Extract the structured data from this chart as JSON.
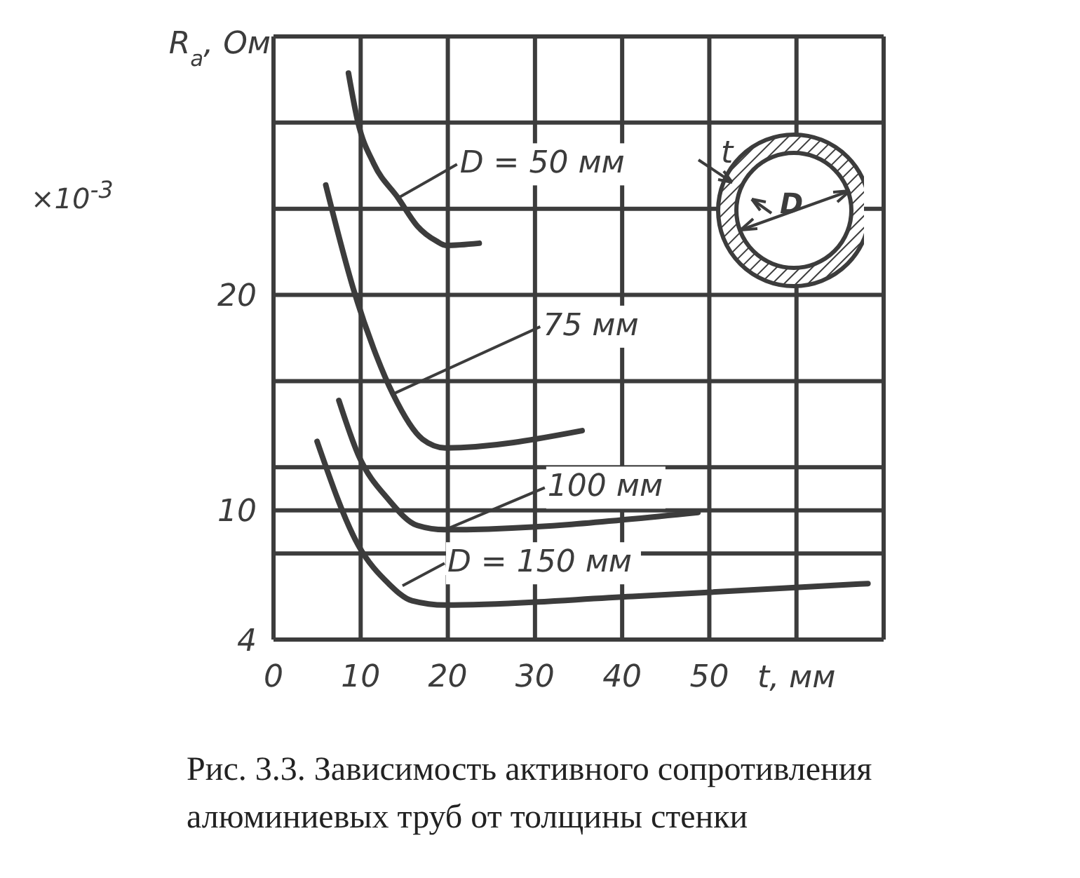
{
  "chart_data": {
    "type": "line",
    "xlabel": "t, мм",
    "ylabel": "R$_{a}$, Ом",
    "xlim": [
      0,
      70
    ],
    "xticks": [
      0,
      10,
      20,
      30,
      40,
      50,
      {
        "value": 60,
        "label": null
      },
      {
        "value": 70,
        "label": null
      }
    ],
    "ylim": [
      4,
      32
    ],
    "yticks": [
      4,
      {
        "value": 8,
        "label": null
      },
      10,
      {
        "value": 12,
        "label": null
      },
      {
        "value": 16,
        "label": null
      },
      20,
      {
        "value": 24,
        "label": null
      },
      {
        "value": 28,
        "label": null
      },
      {
        "value": 32,
        "label": null
      }
    ],
    "grid": true,
    "line_style": "solid",
    "series": [
      {
        "color": "#3c3c3c",
        "x": [
          8.6,
          9.7,
          11.5,
          14.3,
          16.5,
          18.7,
          19.8,
          23.6
        ],
        "values": [
          30.3,
          28,
          26.1,
          24.5,
          23.2,
          22.5,
          22.3,
          22.4
        ]
      },
      {
        "color": "#3c3c3c",
        "x": [
          6.0,
          9.3,
          11.5,
          13.7,
          17.1,
          19.7,
          35.4
        ],
        "values": [
          25.1,
          20.1,
          17.5,
          15.4,
          13.3,
          12.9,
          13.7
        ]
      },
      {
        "color": "#3c3c3c",
        "x": [
          7.5,
          9.7,
          13.2,
          16.5,
          19.7,
          48.7
        ],
        "values": [
          15.1,
          12.6,
          10.5,
          9.3,
          9.1,
          9.9
        ]
      },
      {
        "color": "#3c3c3c",
        "x": [
          5.0,
          9.7,
          13.2,
          15.9,
          19.7,
          41.2,
          68.2
        ],
        "values": [
          13.2,
          8.4,
          6.6,
          5.8,
          5.6,
          6.0,
          6.6
        ]
      }
    ],
    "annotations": [
      {
        "text": "D = 50 мм",
        "x": 14.3,
        "y": 24.5
      },
      {
        "text": "75 мм",
        "x": 13.7,
        "y": 15.4
      },
      {
        "text": "100 мм",
        "x": 19.7,
        "y": 9.1
      },
      {
        "text": "D = 150 мм",
        "x": 14.8,
        "y": 6.5
      },
      "×10$^{-3}$",
      "t",
      "D",
      "Рис. 3.3. Зависимость активного сопротивления алюминиевых труб от толщины стенки"
    ]
  }
}
